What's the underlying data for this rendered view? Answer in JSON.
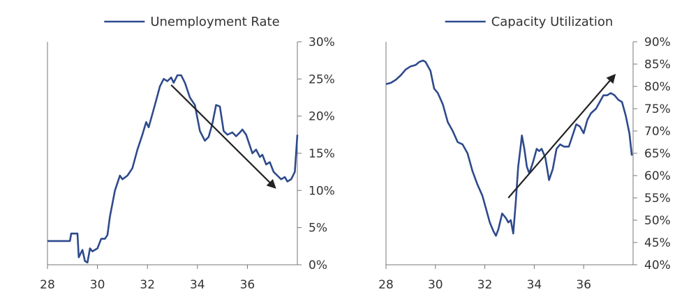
{
  "chart_data": [
    {
      "type": "line",
      "title": "",
      "xlabel": "",
      "ylabel": "",
      "y_axis_side": "right",
      "xlim": [
        28,
        38
      ],
      "ylim": [
        0,
        30
      ],
      "x_ticks": [
        28,
        30,
        32,
        34,
        36
      ],
      "x_tick_labels": [
        "28",
        "30",
        "32",
        "34",
        "36"
      ],
      "y_ticks": [
        0,
        5,
        10,
        15,
        20,
        25,
        30
      ],
      "y_tick_labels": [
        "0%",
        "5%",
        "10%",
        "15%",
        "20%",
        "25%",
        "30%"
      ],
      "grid": false,
      "legend": {
        "placement": "top-center",
        "entries": [
          "Unemployment Rate"
        ]
      },
      "series": [
        {
          "name": "Unemployment Rate",
          "color": "#2e4a8c",
          "points": [
            [
              28.0,
              3.2
            ],
            [
              28.5,
              3.2
            ],
            [
              28.9,
              3.2
            ],
            [
              28.95,
              4.2
            ],
            [
              29.2,
              4.2
            ],
            [
              29.25,
              1.0
            ],
            [
              29.4,
              2.0
            ],
            [
              29.5,
              0.5
            ],
            [
              29.6,
              0.3
            ],
            [
              29.7,
              2.2
            ],
            [
              29.8,
              1.8
            ],
            [
              30.0,
              2.2
            ],
            [
              30.15,
              3.5
            ],
            [
              30.3,
              3.5
            ],
            [
              30.4,
              4.0
            ],
            [
              30.5,
              6.5
            ],
            [
              30.7,
              10.0
            ],
            [
              30.9,
              12.0
            ],
            [
              31.0,
              11.5
            ],
            [
              31.2,
              12.0
            ],
            [
              31.4,
              13.0
            ],
            [
              31.6,
              15.5
            ],
            [
              31.8,
              17.5
            ],
            [
              31.95,
              19.2
            ],
            [
              32.05,
              18.5
            ],
            [
              32.3,
              21.5
            ],
            [
              32.5,
              24.0
            ],
            [
              32.65,
              25.0
            ],
            [
              32.8,
              24.7
            ],
            [
              32.95,
              25.2
            ],
            [
              33.05,
              24.5
            ],
            [
              33.2,
              25.5
            ],
            [
              33.35,
              25.5
            ],
            [
              33.5,
              24.5
            ],
            [
              33.7,
              22.5
            ],
            [
              33.9,
              21.5
            ],
            [
              34.1,
              18.0
            ],
            [
              34.3,
              16.7
            ],
            [
              34.45,
              17.2
            ],
            [
              34.6,
              19.0
            ],
            [
              34.75,
              21.5
            ],
            [
              34.9,
              21.3
            ],
            [
              35.05,
              18.0
            ],
            [
              35.2,
              17.5
            ],
            [
              35.4,
              17.8
            ],
            [
              35.55,
              17.3
            ],
            [
              35.7,
              17.8
            ],
            [
              35.8,
              18.2
            ],
            [
              35.95,
              17.5
            ],
            [
              36.1,
              16.0
            ],
            [
              36.2,
              15.0
            ],
            [
              36.35,
              15.5
            ],
            [
              36.5,
              14.5
            ],
            [
              36.6,
              14.8
            ],
            [
              36.75,
              13.5
            ],
            [
              36.9,
              13.8
            ],
            [
              37.05,
              12.5
            ],
            [
              37.2,
              12.0
            ],
            [
              37.35,
              11.5
            ],
            [
              37.5,
              11.8
            ],
            [
              37.6,
              11.2
            ],
            [
              37.75,
              11.5
            ],
            [
              37.9,
              12.5
            ],
            [
              38.0,
              17.5
            ]
          ]
        }
      ],
      "annotations": [
        {
          "type": "arrow",
          "from": [
            32.95,
            24.2
          ],
          "to": [
            37.1,
            10.4
          ],
          "color": "#222222"
        }
      ]
    },
    {
      "type": "line",
      "title": "",
      "xlabel": "",
      "ylabel": "",
      "y_axis_side": "right",
      "xlim": [
        28,
        38
      ],
      "ylim": [
        40,
        90
      ],
      "x_ticks": [
        28,
        30,
        32,
        34,
        36
      ],
      "x_tick_labels": [
        "28",
        "30",
        "32",
        "34",
        "36"
      ],
      "y_ticks": [
        40,
        45,
        50,
        55,
        60,
        65,
        70,
        75,
        80,
        85,
        90
      ],
      "y_tick_labels": [
        "40%",
        "45%",
        "50%",
        "55%",
        "60%",
        "65%",
        "70%",
        "75%",
        "80%",
        "85%",
        "90%"
      ],
      "grid": false,
      "legend": {
        "placement": "top-center",
        "entries": [
          "Capacity Utilization"
        ]
      },
      "series": [
        {
          "name": "Capacity Utilization",
          "color": "#2e4a8c",
          "points": [
            [
              28.0,
              80.5
            ],
            [
              28.2,
              80.8
            ],
            [
              28.4,
              81.5
            ],
            [
              28.6,
              82.5
            ],
            [
              28.8,
              83.8
            ],
            [
              29.0,
              84.5
            ],
            [
              29.2,
              84.8
            ],
            [
              29.35,
              85.5
            ],
            [
              29.5,
              85.8
            ],
            [
              29.6,
              85.5
            ],
            [
              29.8,
              83.5
            ],
            [
              29.95,
              79.5
            ],
            [
              30.1,
              78.5
            ],
            [
              30.3,
              76.0
            ],
            [
              30.5,
              72.0
            ],
            [
              30.7,
              70.0
            ],
            [
              30.9,
              67.5
            ],
            [
              31.1,
              67.0
            ],
            [
              31.3,
              65.0
            ],
            [
              31.5,
              61.0
            ],
            [
              31.7,
              58.0
            ],
            [
              31.9,
              55.5
            ],
            [
              32.05,
              52.5
            ],
            [
              32.2,
              49.5
            ],
            [
              32.35,
              47.5
            ],
            [
              32.45,
              46.5
            ],
            [
              32.55,
              48.0
            ],
            [
              32.7,
              51.5
            ],
            [
              32.85,
              50.5
            ],
            [
              32.95,
              49.5
            ],
            [
              33.05,
              50.0
            ],
            [
              33.15,
              47.0
            ],
            [
              33.25,
              54.0
            ],
            [
              33.35,
              62.0
            ],
            [
              33.45,
              66.5
            ],
            [
              33.5,
              69.0
            ],
            [
              33.6,
              66.0
            ],
            [
              33.7,
              62.0
            ],
            [
              33.8,
              60.5
            ],
            [
              33.95,
              63.0
            ],
            [
              34.1,
              66.0
            ],
            [
              34.2,
              65.5
            ],
            [
              34.3,
              66.0
            ],
            [
              34.45,
              64.0
            ],
            [
              34.6,
              59.0
            ],
            [
              34.75,
              61.5
            ],
            [
              34.9,
              66.0
            ],
            [
              35.05,
              67.0
            ],
            [
              35.2,
              66.5
            ],
            [
              35.4,
              66.5
            ],
            [
              35.55,
              69.0
            ],
            [
              35.7,
              71.5
            ],
            [
              35.85,
              71.0
            ],
            [
              36.0,
              69.5
            ],
            [
              36.15,
              72.5
            ],
            [
              36.3,
              74.0
            ],
            [
              36.5,
              75.0
            ],
            [
              36.65,
              76.5
            ],
            [
              36.8,
              78.0
            ],
            [
              36.95,
              78.0
            ],
            [
              37.1,
              78.5
            ],
            [
              37.25,
              78.0
            ],
            [
              37.4,
              77.0
            ],
            [
              37.55,
              76.5
            ],
            [
              37.7,
              73.5
            ],
            [
              37.85,
              69.5
            ],
            [
              37.95,
              64.5
            ]
          ]
        }
      ],
      "annotations": [
        {
          "type": "arrow",
          "from": [
            32.95,
            55.0
          ],
          "to": [
            37.25,
            82.5
          ],
          "color": "#222222"
        }
      ]
    }
  ]
}
